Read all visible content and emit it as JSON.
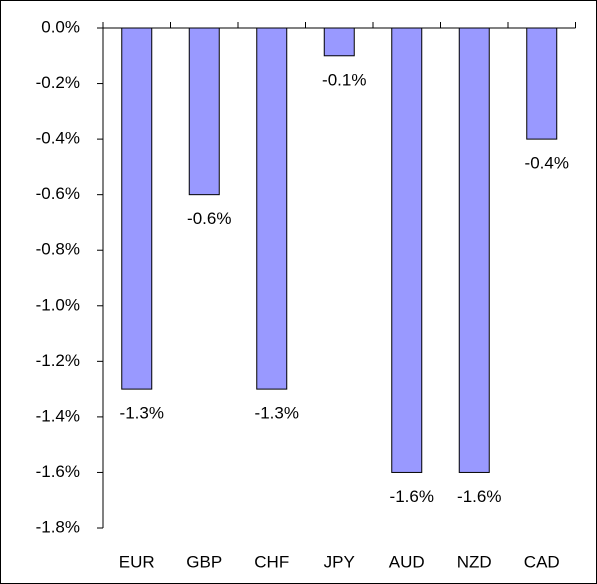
{
  "chart_data": {
    "type": "bar",
    "categories": [
      "EUR",
      "GBP",
      "CHF",
      "JPY",
      "AUD",
      "NZD",
      "CAD"
    ],
    "values": [
      -1.3,
      -0.6,
      -1.3,
      -0.1,
      -1.6,
      -1.6,
      -0.4
    ],
    "value_labels": [
      "-1.3%",
      "-0.6%",
      "-1.3%",
      "-0.1%",
      "-1.6%",
      "-1.6%",
      "-0.4%"
    ],
    "color": "#9999ff",
    "ylim": [
      -1.8,
      0
    ],
    "yticks": [
      {
        "value": 0,
        "label": "0.0%"
      },
      {
        "value": -0.2,
        "label": "-0.2%"
      },
      {
        "value": -0.4,
        "label": "-0.4%"
      },
      {
        "value": -0.6,
        "label": "-0.6%"
      },
      {
        "value": -0.8,
        "label": "-0.8%"
      },
      {
        "value": -1.0,
        "label": "-1.0%"
      },
      {
        "value": -1.2,
        "label": "-1.2%"
      },
      {
        "value": -1.4,
        "label": "-1.4%"
      },
      {
        "value": -1.6,
        "label": "-1.6%"
      },
      {
        "value": -1.8,
        "label": "-1.8%"
      }
    ],
    "grid": false
  }
}
